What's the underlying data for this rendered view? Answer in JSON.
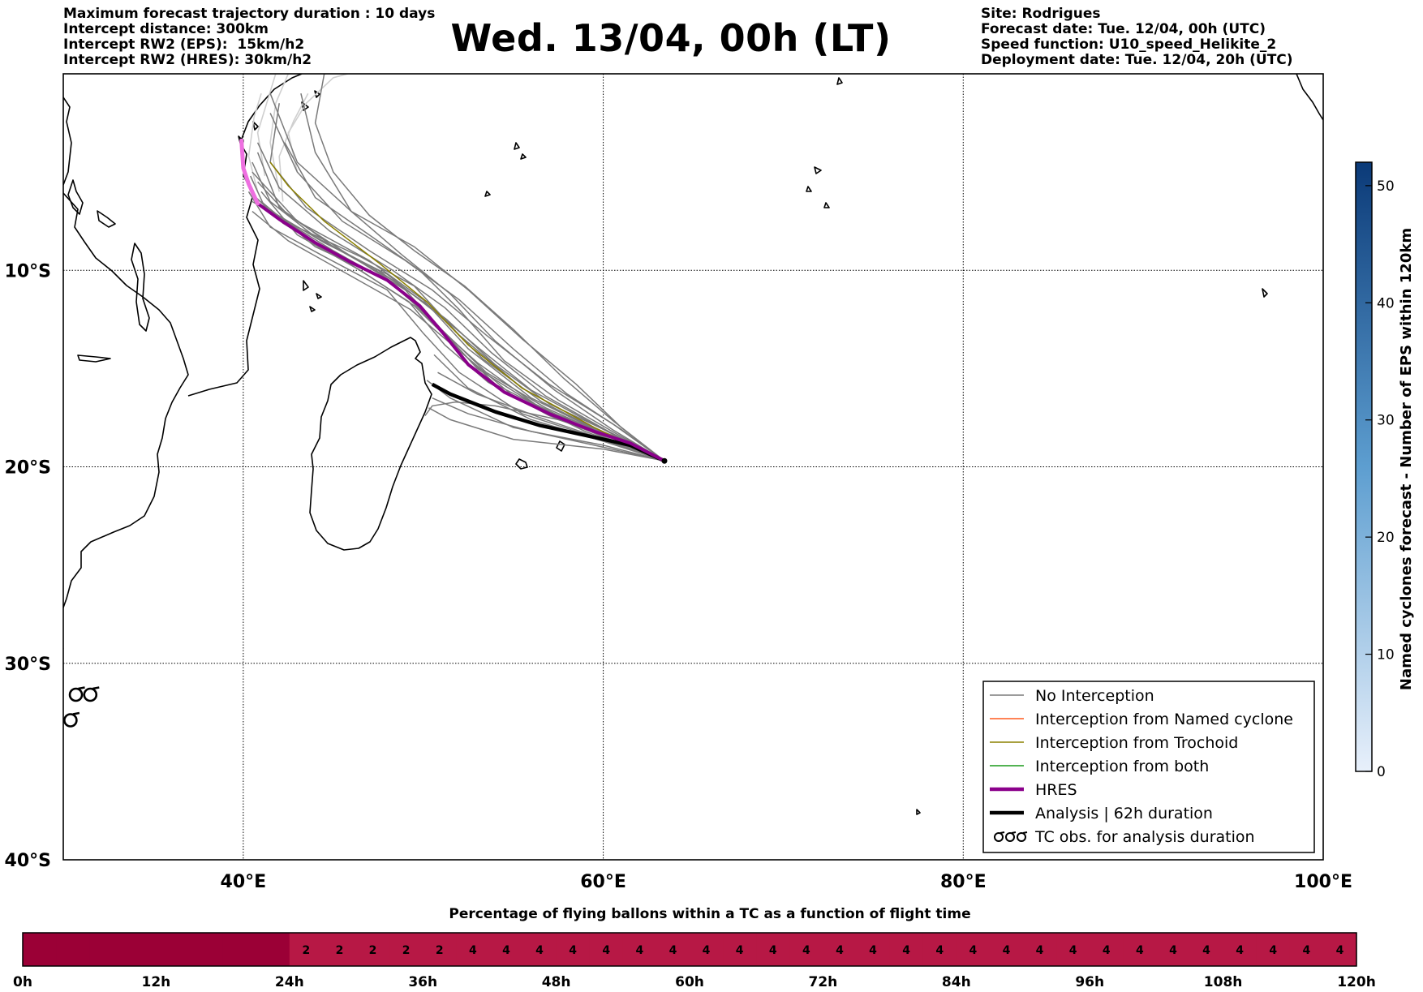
{
  "header": {
    "left_lines": [
      "Maximum forecast trajectory duration : 10 days",
      "Intercept distance: 300km",
      "Intercept RW2 (EPS):  15km/h2",
      "Intercept RW2 (HRES): 30km/h2"
    ],
    "title": "Wed. 13/04, 00h (LT)",
    "right_lines": [
      "Site: Rodrigues",
      "Forecast date: Tue. 12/04, 00h (UTC)",
      "Speed function: U10_speed_Helikite_2",
      "Deployment date: Tue. 12/04, 20h (UTC)"
    ]
  },
  "colors": {
    "no_interception": "#7a7a7a",
    "named_cyclone": "#ff5a1e",
    "trochoid": "#8c8000",
    "both": "#1a9a1a",
    "hres": "#8b008b",
    "analysis": "#000000",
    "strip_dark": "#9b0036",
    "strip_light": "#b71845",
    "colorbar_low": "#e8f0fb",
    "colorbar_high": "#0b3a78"
  },
  "chart_data": [
    {
      "type": "line",
      "xlim": [
        30,
        100
      ],
      "ylim": [
        -40,
        0
      ],
      "x_ticks": [
        40,
        60,
        80,
        100
      ],
      "x_tick_labels": [
        "40°E",
        "60°E",
        "80°E",
        "100°E"
      ],
      "y_ticks": [
        -10,
        -20,
        -30,
        -40
      ],
      "y_tick_labels": [
        "10°S",
        "20°S",
        "30°S",
        "40°S"
      ],
      "grid": true,
      "legend_position": "bottom-right",
      "legend": [
        {
          "label": "No Interception",
          "kind": "thin",
          "color_key": "no_interception"
        },
        {
          "label": "Interception from Named cyclone",
          "kind": "thin",
          "color_key": "named_cyclone"
        },
        {
          "label": "Interception from Trochoid",
          "kind": "thin",
          "color_key": "trochoid"
        },
        {
          "label": "Interception from both",
          "kind": "thin",
          "color_key": "both"
        },
        {
          "label": "HRES",
          "kind": "thick",
          "color_key": "hres"
        },
        {
          "label": "Analysis | 62h duration",
          "kind": "thick",
          "color_key": "analysis"
        },
        {
          "label": "TC obs. for analysis duration",
          "kind": "tc"
        }
      ],
      "launch_site": [
        63.4,
        -19.7
      ],
      "hres_track": [
        [
          63.4,
          -19.7
        ],
        [
          61.5,
          -18.8
        ],
        [
          59.5,
          -18.2
        ],
        [
          57,
          -17.3
        ],
        [
          54.5,
          -16.2
        ],
        [
          52.5,
          -14.8
        ],
        [
          51.2,
          -13.3
        ],
        [
          49.8,
          -11.8
        ],
        [
          48,
          -10.5
        ],
        [
          46,
          -9.6
        ],
        [
          44,
          -8.6
        ],
        [
          42,
          -7.4
        ],
        [
          40.8,
          -6.6
        ],
        [
          40.3,
          -5.6
        ],
        [
          40,
          -4.8
        ],
        [
          39.9,
          -3.4
        ]
      ],
      "analysis_track": [
        [
          63.4,
          -19.7
        ],
        [
          61.5,
          -18.9
        ],
        [
          59,
          -18.4
        ],
        [
          56.5,
          -17.9
        ],
        [
          54,
          -17.2
        ],
        [
          51.5,
          -16.3
        ],
        [
          50.5,
          -15.8
        ]
      ],
      "eps_tracks": [
        [
          [
            63.4,
            -19.7
          ],
          [
            60,
            -18.3
          ],
          [
            56,
            -16.5
          ],
          [
            52.5,
            -14
          ],
          [
            50,
            -11.5
          ],
          [
            47,
            -9.5
          ],
          [
            43,
            -7.5
          ],
          [
            40.5,
            -5
          ]
        ],
        [
          [
            63.4,
            -19.7
          ],
          [
            60,
            -18.5
          ],
          [
            56.5,
            -17
          ],
          [
            53,
            -15
          ],
          [
            50.5,
            -12.5
          ],
          [
            48,
            -10.5
          ],
          [
            44,
            -8.8
          ],
          [
            41,
            -6.5
          ]
        ],
        [
          [
            63.4,
            -19.7
          ],
          [
            60.5,
            -17.8
          ],
          [
            57,
            -15.8
          ],
          [
            53.5,
            -13.3
          ],
          [
            50.5,
            -11
          ],
          [
            47,
            -9
          ],
          [
            43.5,
            -6.8
          ],
          [
            41.5,
            -4.5
          ],
          [
            42,
            -1.5
          ]
        ],
        [
          [
            63.4,
            -19.7
          ],
          [
            59.5,
            -18.9
          ],
          [
            55,
            -18
          ],
          [
            51.5,
            -16.5
          ],
          [
            50.2,
            -15.6
          ]
        ],
        [
          [
            63.4,
            -19.7
          ],
          [
            60,
            -19.1
          ],
          [
            55,
            -18.6
          ],
          [
            51.5,
            -17.6
          ],
          [
            50.3,
            -17
          ]
        ],
        [
          [
            63.4,
            -19.7
          ],
          [
            59.5,
            -18
          ],
          [
            55.5,
            -16
          ],
          [
            52,
            -13.3
          ],
          [
            49.5,
            -10.8
          ],
          [
            46.5,
            -9.3
          ],
          [
            43,
            -7.8
          ],
          [
            40.5,
            -6.5
          ]
        ],
        [
          [
            63.4,
            -19.7
          ],
          [
            61,
            -18.1
          ],
          [
            58,
            -16.3
          ],
          [
            55,
            -14
          ],
          [
            52,
            -11.5
          ],
          [
            49,
            -9.5
          ],
          [
            45.5,
            -7.5
          ],
          [
            43,
            -5
          ],
          [
            41.5,
            -2
          ]
        ],
        [
          [
            63.4,
            -19.7
          ],
          [
            60,
            -18.7
          ],
          [
            56,
            -17.6
          ],
          [
            52.5,
            -16
          ],
          [
            50.6,
            -14.3
          ]
        ],
        [
          [
            63.4,
            -19.7
          ],
          [
            59,
            -18.2
          ],
          [
            55,
            -16.4
          ],
          [
            52,
            -14.1
          ],
          [
            49.3,
            -12
          ],
          [
            46,
            -10.3
          ],
          [
            42.5,
            -8.5
          ],
          [
            40.5,
            -7
          ]
        ],
        [
          [
            63.4,
            -19.7
          ],
          [
            60.5,
            -18.3
          ],
          [
            57,
            -16.8
          ],
          [
            54,
            -14.8
          ],
          [
            51.3,
            -12.5
          ],
          [
            48.5,
            -10.6
          ],
          [
            45,
            -8.8
          ],
          [
            42,
            -6.8
          ],
          [
            40.8,
            -4
          ]
        ],
        [
          [
            63.4,
            -19.7
          ],
          [
            60.5,
            -18.4
          ],
          [
            57,
            -17.2
          ],
          [
            54,
            -15.8
          ],
          [
            51.5,
            -13.6
          ],
          [
            49.5,
            -11.8
          ],
          [
            46.5,
            -10
          ],
          [
            43,
            -8.2
          ],
          [
            41,
            -6
          ]
        ],
        [
          [
            63.4,
            -19.7
          ],
          [
            61,
            -18
          ],
          [
            58.5,
            -15.8
          ],
          [
            55.5,
            -13.5
          ],
          [
            52.5,
            -11
          ],
          [
            49.5,
            -8.8
          ],
          [
            46,
            -7
          ],
          [
            43,
            -4.5
          ],
          [
            41.5,
            -1
          ]
        ],
        [
          [
            63.4,
            -19.7
          ],
          [
            59.5,
            -18.5
          ],
          [
            55.5,
            -17.3
          ],
          [
            52,
            -15.2
          ],
          [
            50,
            -13.2
          ],
          [
            48,
            -11
          ],
          [
            44.5,
            -9.3
          ],
          [
            41.5,
            -7.8
          ],
          [
            40.3,
            -6
          ]
        ],
        [
          [
            63.4,
            -19.7
          ],
          [
            60,
            -18.6
          ],
          [
            56.5,
            -17.5
          ],
          [
            53,
            -16.3
          ],
          [
            50.8,
            -15.2
          ]
        ],
        [
          [
            63.4,
            -19.7
          ],
          [
            60.5,
            -18.2
          ],
          [
            57.5,
            -16.6
          ],
          [
            54.5,
            -14.6
          ],
          [
            52,
            -12
          ],
          [
            49.8,
            -10
          ],
          [
            47,
            -8.2
          ],
          [
            44,
            -6.3
          ],
          [
            42.3,
            -3.5
          ]
        ],
        [
          [
            63.4,
            -19.7
          ],
          [
            59.8,
            -18
          ],
          [
            56,
            -16.1
          ],
          [
            53,
            -13.9
          ],
          [
            50.3,
            -11.8
          ],
          [
            47.5,
            -10
          ],
          [
            44,
            -8.3
          ],
          [
            41.5,
            -6.5
          ],
          [
            40.5,
            -4.5
          ]
        ],
        [
          [
            63.4,
            -19.7
          ],
          [
            60.8,
            -18.6
          ],
          [
            57.5,
            -17.6
          ],
          [
            54,
            -16.9
          ],
          [
            51.8,
            -16.7
          ],
          [
            50.5,
            -16.9
          ],
          [
            50.1,
            -17.4
          ]
        ],
        [
          [
            63.4,
            -19.7
          ],
          [
            60.2,
            -18.4
          ],
          [
            56.8,
            -17
          ],
          [
            53.5,
            -15.2
          ],
          [
            51,
            -13
          ],
          [
            49,
            -11
          ],
          [
            45.5,
            -9
          ],
          [
            42.5,
            -7.2
          ],
          [
            40.8,
            -5.5
          ]
        ],
        [
          [
            63.4,
            -19.7
          ],
          [
            60.6,
            -17.7
          ],
          [
            57.8,
            -15.5
          ],
          [
            55,
            -13
          ],
          [
            52.3,
            -10.8
          ],
          [
            49.5,
            -9
          ],
          [
            47,
            -7.2
          ],
          [
            45,
            -5
          ],
          [
            44,
            -2.5
          ],
          [
            44.5,
            0
          ]
        ],
        [
          [
            63.4,
            -19.7
          ],
          [
            60,
            -18.9
          ],
          [
            56,
            -18.2
          ],
          [
            52.5,
            -17.3
          ],
          [
            50.5,
            -16.5
          ]
        ],
        [
          [
            63.4,
            -19.7
          ],
          [
            60.3,
            -18.2
          ],
          [
            56.8,
            -16.4
          ],
          [
            53.8,
            -14.2
          ],
          [
            51.2,
            -11.9
          ],
          [
            48.3,
            -10
          ],
          [
            44.8,
            -8
          ],
          [
            42,
            -5.8
          ],
          [
            40.8,
            -3.5
          ]
        ],
        [
          [
            63.4,
            -19.7
          ],
          [
            59.8,
            -18.4
          ],
          [
            56.2,
            -16.8
          ],
          [
            53,
            -14.7
          ],
          [
            50.7,
            -12.8
          ],
          [
            48.5,
            -10.8
          ],
          [
            45,
            -9
          ],
          [
            41.8,
            -7.2
          ]
        ],
        [
          [
            63.4,
            -19.7
          ],
          [
            60.5,
            -18.1
          ],
          [
            57.3,
            -16.1
          ],
          [
            54,
            -13.6
          ],
          [
            51.5,
            -11.2
          ],
          [
            48.8,
            -9.2
          ],
          [
            46,
            -7
          ],
          [
            44,
            -4
          ],
          [
            43.2,
            -1
          ]
        ],
        [
          [
            63.4,
            -19.7
          ],
          [
            60.1,
            -18.3
          ],
          [
            56.6,
            -16.7
          ],
          [
            53.3,
            -14.5
          ],
          [
            50.9,
            -12.3
          ],
          [
            48,
            -10.2
          ],
          [
            44.5,
            -8.6
          ],
          [
            41.2,
            -6.8
          ],
          [
            40.4,
            -5.2
          ]
        ],
        [
          [
            63.4,
            -19.7
          ],
          [
            60.4,
            -18.6
          ],
          [
            57,
            -17.4
          ],
          [
            53.6,
            -15.7
          ],
          [
            51.2,
            -13.8
          ],
          [
            49.2,
            -11.6
          ],
          [
            45.8,
            -9.6
          ],
          [
            42.2,
            -7.6
          ],
          [
            40.6,
            -6.2
          ]
        ]
      ],
      "light_tracks": [
        [
          [
            42,
            -6
          ],
          [
            41.5,
            -3.5
          ],
          [
            41.8,
            -1.5
          ],
          [
            42.5,
            0
          ]
        ],
        [
          [
            41.2,
            -5.2
          ],
          [
            40.8,
            -3
          ],
          [
            41.4,
            -1.2
          ],
          [
            41.8,
            0
          ]
        ],
        [
          [
            43,
            -5
          ],
          [
            42.5,
            -3
          ],
          [
            43.5,
            -1.5
          ],
          [
            45,
            -0.2
          ],
          [
            45.8,
            0
          ]
        ],
        [
          [
            40.8,
            -6
          ],
          [
            40.3,
            -4.2
          ],
          [
            40.6,
            -2.2
          ],
          [
            41,
            -1
          ]
        ],
        [
          [
            42.2,
            -6.5
          ],
          [
            42,
            -4.2
          ],
          [
            42.8,
            -2.4
          ],
          [
            43.6,
            -1
          ]
        ]
      ],
      "trochoid_track": [
        [
          63.4,
          -19.7
        ],
        [
          59.5,
          -18
        ],
        [
          55.5,
          -16
        ],
        [
          52.5,
          -13.8
        ],
        [
          50.2,
          -11.6
        ],
        [
          47.5,
          -9.6
        ],
        [
          44.5,
          -7.5
        ],
        [
          42.5,
          -5.7
        ],
        [
          41.5,
          -4.5
        ]
      ],
      "pink_track": [
        [
          40.8,
          -6.6
        ],
        [
          40.3,
          -5.6
        ],
        [
          40,
          -4.8
        ],
        [
          39.9,
          -3.4
        ]
      ],
      "tc_obs": [
        [
          30.7,
          -31.6
        ],
        [
          31.5,
          -31.6
        ],
        [
          30.4,
          -32.9
        ]
      ]
    },
    {
      "type": "heatmap",
      "title": "Named cyclones forecast - Number of EPS within 120km",
      "range": [
        0,
        52
      ],
      "ticks": [
        0,
        10,
        20,
        30,
        40,
        50
      ],
      "tick_labels": [
        "0",
        "10",
        "20",
        "30",
        "40",
        "50"
      ]
    },
    {
      "type": "heatmap",
      "title": "Percentage of flying ballons within a TC as a function of flight time",
      "x_ticks_hours": [
        0,
        12,
        24,
        36,
        48,
        60,
        72,
        84,
        96,
        108,
        120
      ],
      "x_tick_labels": [
        "0h",
        "12h",
        "24h",
        "36h",
        "48h",
        "60h",
        "72h",
        "84h",
        "96h",
        "108h",
        "120h"
      ],
      "cell_hours": 3,
      "values": [
        0,
        0,
        0,
        0,
        0,
        0,
        0,
        0,
        2,
        2,
        2,
        2,
        2,
        4,
        4,
        4,
        4,
        4,
        4,
        4,
        4,
        4,
        4,
        4,
        4,
        4,
        4,
        4,
        4,
        4,
        4,
        4,
        4,
        4,
        4,
        4,
        4,
        4,
        4,
        4
      ]
    }
  ]
}
